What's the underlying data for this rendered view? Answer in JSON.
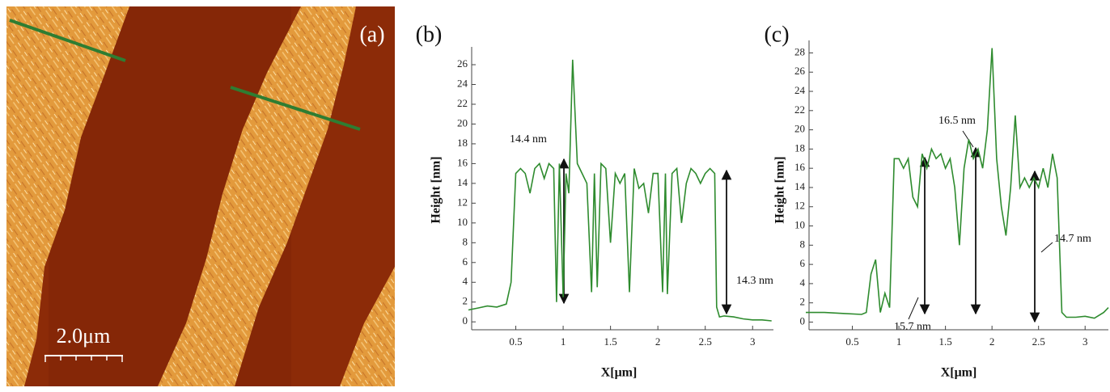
{
  "image_panel": {
    "label": "(a)",
    "scale_bar": "2.0μm"
  },
  "chart_data": [
    {
      "type": "line",
      "label": "(b)",
      "x_label": "X[μm]",
      "y_label": "Height [nm]",
      "color": "#2e8b2e",
      "x": [
        0,
        0.1,
        0.2,
        0.3,
        0.4,
        0.45,
        0.5,
        0.55,
        0.6,
        0.65,
        0.7,
        0.75,
        0.8,
        0.85,
        0.9,
        0.93,
        0.96,
        1.0,
        1.03,
        1.06,
        1.1,
        1.15,
        1.2,
        1.25,
        1.3,
        1.33,
        1.36,
        1.4,
        1.45,
        1.5,
        1.55,
        1.6,
        1.65,
        1.7,
        1.75,
        1.8,
        1.85,
        1.9,
        1.95,
        2.0,
        2.05,
        2.08,
        2.1,
        2.15,
        2.2,
        2.25,
        2.3,
        2.35,
        2.4,
        2.45,
        2.5,
        2.55,
        2.6,
        2.62,
        2.65,
        2.7,
        2.8,
        2.9,
        3.0,
        3.1,
        3.2
      ],
      "values": [
        1.2,
        1.4,
        1.6,
        1.5,
        1.8,
        4,
        15,
        15.5,
        15,
        13,
        15.5,
        16,
        14.5,
        16,
        15.5,
        2,
        16,
        2.5,
        15,
        13,
        26.5,
        16,
        15,
        14,
        3,
        15,
        3.5,
        16,
        15.5,
        8,
        15,
        14,
        15,
        3,
        15.5,
        13.5,
        14,
        11,
        15,
        15,
        3,
        15,
        2.8,
        15,
        15.5,
        10,
        14,
        15.5,
        15,
        14,
        15,
        15.5,
        15,
        1.5,
        0.5,
        0.6,
        0.5,
        0.3,
        0.2,
        0.2,
        0.1
      ],
      "xlim": [
        0,
        3.22
      ],
      "ylim": [
        -0.8,
        27.8
      ],
      "xticks": [
        0.5,
        1,
        1.5,
        2,
        2.5,
        3
      ],
      "yticks": [
        0,
        2,
        4,
        6,
        8,
        10,
        12,
        14,
        16,
        18,
        20,
        22,
        24,
        26
      ],
      "annotations": [
        "14.4 nm",
        "14.3 nm"
      ]
    },
    {
      "type": "line",
      "label": "(c)",
      "x_label": "X[μm]",
      "y_label": "Height [nm]",
      "color": "#2e8b2e",
      "x": [
        0,
        0.2,
        0.4,
        0.6,
        0.65,
        0.7,
        0.75,
        0.8,
        0.85,
        0.9,
        0.95,
        1.0,
        1.05,
        1.1,
        1.15,
        1.2,
        1.25,
        1.3,
        1.35,
        1.4,
        1.45,
        1.5,
        1.55,
        1.6,
        1.65,
        1.7,
        1.75,
        1.8,
        1.85,
        1.9,
        1.95,
        2.0,
        2.05,
        2.1,
        2.15,
        2.2,
        2.25,
        2.3,
        2.35,
        2.4,
        2.45,
        2.5,
        2.55,
        2.6,
        2.65,
        2.7,
        2.75,
        2.8,
        2.9,
        3.0,
        3.1,
        3.2,
        3.25
      ],
      "values": [
        1,
        1,
        0.9,
        0.8,
        1,
        5,
        6.5,
        1,
        3,
        1.5,
        17,
        17,
        16,
        17,
        13,
        12,
        17.5,
        16,
        18,
        17,
        17.5,
        16,
        17,
        14,
        8,
        16,
        19,
        17,
        18,
        16,
        20,
        28.5,
        17,
        12,
        9,
        14,
        21.5,
        14,
        15,
        14,
        15,
        14,
        16,
        14,
        17.5,
        15,
        1,
        0.5,
        0.5,
        0.6,
        0.4,
        1,
        1.5
      ],
      "xlim": [
        0,
        3.25
      ],
      "ylim": [
        -0.8,
        29.3
      ],
      "xticks": [
        0.5,
        1,
        1.5,
        2,
        2.5,
        3
      ],
      "yticks": [
        0,
        2,
        4,
        6,
        8,
        10,
        12,
        14,
        16,
        18,
        20,
        22,
        24,
        26,
        28
      ],
      "annotations": [
        "16.5 nm",
        "15.7 nm",
        "14.7 nm"
      ]
    }
  ]
}
